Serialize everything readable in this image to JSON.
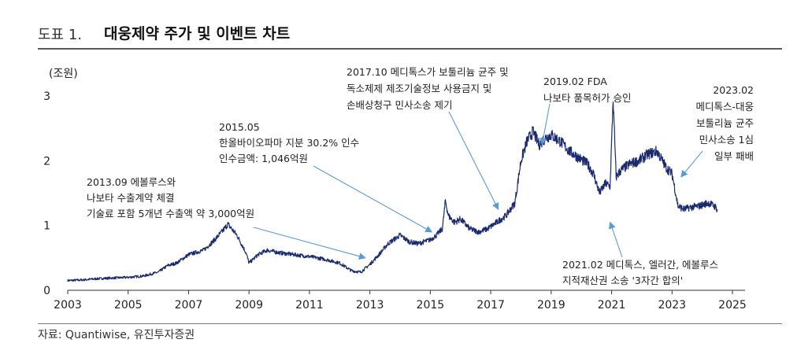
{
  "figure": {
    "number": "도표 1.",
    "title": "대웅제약 주가 및 이벤트 차트",
    "source": "자료: Quantiwise, 유진투자증권"
  },
  "colors": {
    "line": "#1a2a6e",
    "arrow": "#5b9bd5",
    "rule": "#5a5a5a"
  },
  "chart_data": {
    "type": "line",
    "title": "",
    "xlabel": "",
    "ylabel": "(조원)",
    "xlim": [
      2003,
      2025
    ],
    "ylim": [
      0,
      3
    ],
    "x_ticks": [
      2003,
      2005,
      2007,
      2009,
      2011,
      2013,
      2015,
      2017,
      2019,
      2021,
      2023,
      2025
    ],
    "x_tick_labels": [
      "2003",
      "2005",
      "2007",
      "2009",
      "2011",
      "2013",
      "2015",
      "2017",
      "2019",
      "2021",
      "2023",
      "2025"
    ],
    "y_ticks": [
      0,
      1,
      2,
      3
    ],
    "y_tick_labels": [
      "0",
      "1",
      "2",
      "3"
    ],
    "grid": false,
    "legend": "none",
    "series": [
      {
        "x": [
          2003.0,
          2003.5,
          2004.0,
          2004.5,
          2005.0,
          2005.5,
          2006.0,
          2006.3,
          2006.6,
          2007.0,
          2007.5,
          2007.8,
          2008.1,
          2008.3,
          2008.6,
          2008.9,
          2009.0,
          2009.3,
          2009.6,
          2010.0,
          2010.5,
          2011.0,
          2011.5,
          2012.0,
          2012.4,
          2012.7,
          2013.0,
          2013.3,
          2013.6,
          2014.0,
          2014.3,
          2014.6,
          2015.0,
          2015.2,
          2015.4,
          2015.5,
          2015.6,
          2015.8,
          2016.0,
          2016.3,
          2016.6,
          2016.9,
          2017.2,
          2017.5,
          2017.8,
          2018.0,
          2018.2,
          2018.4,
          2018.6,
          2018.8,
          2019.0,
          2019.3,
          2019.6,
          2019.9,
          2020.2,
          2020.4,
          2020.6,
          2020.8,
          2020.95,
          2021.05,
          2021.15,
          2021.3,
          2021.6,
          2021.9,
          2022.2,
          2022.5,
          2022.8,
          2023.0,
          2023.2,
          2023.4,
          2023.6,
          2023.9,
          2024.2,
          2024.4,
          2024.5
        ],
        "y": [
          0.15,
          0.16,
          0.18,
          0.19,
          0.2,
          0.22,
          0.28,
          0.38,
          0.42,
          0.55,
          0.62,
          0.75,
          0.9,
          1.02,
          0.85,
          0.58,
          0.42,
          0.55,
          0.62,
          0.58,
          0.55,
          0.52,
          0.48,
          0.42,
          0.3,
          0.28,
          0.4,
          0.55,
          0.72,
          0.85,
          0.75,
          0.72,
          0.78,
          0.85,
          0.95,
          1.38,
          1.15,
          1.05,
          1.1,
          0.95,
          0.9,
          0.95,
          1.05,
          1.15,
          1.35,
          2.0,
          2.3,
          2.45,
          2.25,
          2.35,
          2.4,
          2.3,
          2.15,
          2.05,
          1.95,
          1.8,
          1.5,
          1.65,
          1.6,
          2.95,
          1.75,
          1.85,
          1.95,
          2.0,
          2.1,
          2.15,
          1.9,
          1.8,
          1.3,
          1.25,
          1.28,
          1.3,
          1.35,
          1.3,
          1.25
        ]
      }
    ],
    "annotations": [
      {
        "lines": [
          "2013.09 에볼루스와",
          "나보타 수출계약 체결",
          "기술료 포함 5개년 수출액 약 3,000억원"
        ],
        "arrow_to": [
          2012.85,
          0.5
        ]
      },
      {
        "lines": [
          "2015.05",
          "한올바이오파마 지분 30.2% 인수",
          "인수금액: 1,046억원"
        ],
        "arrow_to": [
          2015.05,
          0.9
        ]
      },
      {
        "lines": [
          "2017.10 메디톡스가 보툴리늄 균주 및",
          "독소제제 제조기술정보 사용금지 및",
          "손배상청구 민사소송 제기"
        ],
        "arrow_to": [
          2017.25,
          1.25
        ]
      },
      {
        "lines": [
          "2019.02 FDA",
          "나보타 품목허가 승인"
        ],
        "arrow_to": [
          2018.7,
          2.25
        ]
      },
      {
        "lines": [
          "2023.02",
          "메디톡스-대웅",
          "보툴리늄 균주",
          "민사소송 1심",
          "일부 패배"
        ],
        "arrow_to": [
          2023.3,
          1.75
        ]
      },
      {
        "lines": [
          "2021.02 메디톡스, 엘러간, 에볼루스",
          "지적재산권 소송 '3자간 합의'"
        ],
        "arrow_to": [
          2020.95,
          1.05
        ]
      }
    ]
  }
}
